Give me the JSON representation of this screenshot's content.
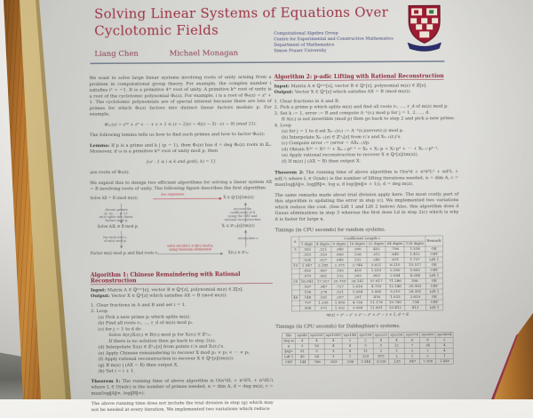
{
  "scene": {
    "accent_color": "#9c3344",
    "paper_color": "#d2d2ce",
    "wood_color": "#b5742e",
    "board_color": "#cdb77e"
  },
  "poster": {
    "title_line1": "Solving Linear Systems of Equations Over",
    "title_line2": "Cyclotomic Fields",
    "authors": [
      "Liang Chen",
      "Michael Monagan"
    ],
    "affiliation": [
      "Computational Algebra Group",
      "Centre for Experimental and Constructive Mathematics",
      "Department of Mathematics",
      "Simon Fraser University"
    ],
    "left": {
      "intro": "We want to solve large linear systems involving roots of unity arising from a problem in computational group theory. For example, the complex number i satisfies i² = −1. It is a primitive 4ᵗʰ root of unity. A primitive kᵗʰ root of unity is a root of the cyclotomic polynomial Φₖ(z). For example, i is a root of Φ₄(z) = z² + 1. The cyclotomic polynomials are of special interest because there are lots of primes for which Φₖ(z) factors into distinct linear factors modulo p. For example,",
      "equation1": "Φ₁₁(z) = z¹⁰ + z⁹ + ⋯ + z + 1 ≡ (z − 2)(z − 4)(z − 5)⋯(z − 9) (mod 11).",
      "lemma_intro": "The following lemma tells us how to find such primes and how to factor Φₖ(z):",
      "lemma_label": "Lemma:",
      "lemma_text": "If p is a prime and k | (p − 1), then Φₖ(z) has d = deg Φₖ(z) roots in ℤₚ. Moreover, if ω is a primitive kᵗʰ root of unity mod p, then",
      "equation2": "{ωⁱ : 1 ≤ i ≤ k and gcd(i, k) = 1}",
      "lemma_end": "are roots of Φₖ(z).",
      "exploit": "We exploit this to design two efficient algorithms for solving a linear system AX = B involving roots of unity. The following figure describes the first algorithm:",
      "figure": {
        "top_left": "Solve AX = B (mod m(z))",
        "top_arrow_label": "too expensive",
        "top_right": "X ∈ ℚⁿ[z]/(m(z))",
        "left_note": "choose primes\np₁, p₂, …, pᵢ s.t.\nm(z) splits into linear\nfactors mod pᵢ",
        "right_note": "recover the\ncoefficients of X\nusing the CRT and\nrational reconstruction",
        "mid_left": "Solve AᵢXᵢ ≡ B mod pᵢ",
        "mid_right": "Xᵢ ∈ ℤⁿₚᵢ[z]/(m(z))",
        "left_note2": "for each root rⱼ\nof m(z) mod pᵢ",
        "right_note2": "interpolate z",
        "bottom_left": "Factor m(z) mod pᵢ and find roots rⱼ",
        "bottom_arrow_label": "solve A(rⱼ)X(rⱼ) ≡ B(rⱼ) mod pᵢ\nusing Gaussian elimination",
        "bottom_right": "X(rⱼ) ∈ ℤⁿₚᵢ"
      },
      "algorithm1": {
        "title": "Algorithm 1: Chinese Remaindering with Rational Reconstruction",
        "input_label": "Input:",
        "input_text": "Matrix A ∈ ℚⁿˣⁿ[z], vector B ∈ ℚⁿ[z], polynomial m(z) ∈ ℤ[z].",
        "output_label": "Output:",
        "output_text": "Vector X ∈ ℚⁿ[z] which satisfies AX = B (mod m(z)).",
        "steps": [
          {
            "i": 0,
            "t": "1. Clear fractions in A and B and set i = 1."
          },
          {
            "i": 0,
            "t": "2. Loop"
          },
          {
            "i": 1,
            "t": "(a) Pick a new prime pᵢ which splits m(z)."
          },
          {
            "i": 1,
            "t": "(b) Find all roots r₁, …, r_d of m(z) mod pᵢ."
          },
          {
            "i": 1,
            "t": "(c) for j = 1 to d do"
          },
          {
            "i": 2,
            "t": "Solve A(rⱼ)Xᵢ(rⱼ) ≡ B(rⱼ) mod pᵢ for Xᵢ(rⱼ) ∈ ℤⁿₚᵢ."
          },
          {
            "i": 2,
            "t": "If there is no solution then go back to step 2(a)."
          },
          {
            "i": 1,
            "t": "(d) Interpolate Xᵢ(z) ∈ ℤⁿₚᵢ[z] from points rⱼ's and Xᵢ(rⱼ)'s."
          },
          {
            "i": 1,
            "t": "(e) Apply Chinese remaindering to recover X mod p₁ × p₂ × ⋯ × pᵢ."
          },
          {
            "i": 1,
            "t": "(f) Apply rational reconstruction to recover X ∈ ℚⁿ[z]/(m(z))."
          },
          {
            "i": 1,
            "t": "(g) If m(z) | (AX − B) then output X."
          },
          {
            "i": 1,
            "t": "(h) Set i = i + 1."
          }
        ]
      },
      "theorem1_label": "Theorem 1:",
      "theorem1_text": "The running time of above algorithm is O(n³dL + n²d²L + n²dL²) where L ∈ O(ndc) is the number of primes needed, n = dim A, d = deg m(z), c = max(log‖A‖∞, log‖B‖∞).",
      "outro": "The above running time does not include the trial division in step (g) which may not be needed at every iteration. We implemented two variations which reduce"
    },
    "right": {
      "algorithm2": {
        "title": "Algorithm 2: p-adic Lifting with Rational Reconstruction",
        "input_label": "Input:",
        "input_text": "Matrix A ∈ ℚⁿˣⁿ[z], vector B ∈ ℚⁿ[z], polynomial m(z) ∈ ℤ[z].",
        "output_label": "Output:",
        "output_text": "Vector X ∈ ℚⁿ[z] which satisfies AX = B (mod m(z)).",
        "steps": [
          {
            "i": 0,
            "t": "1. Clear fractions in A and B."
          },
          {
            "i": 0,
            "t": "2. Pick a prime p which splits m(z) and find all roots r₁, …, r_d of m(z) mod p."
          },
          {
            "i": 0,
            "t": "3. Set k := 1, error := B and compute A⁻¹(rⱼ) mod p for j = 1, 2, …, d."
          },
          {
            "i": 1,
            "t": "If A(rⱼ) is not invertible (mod p) then go back to step 2 and pick a new prime."
          },
          {
            "i": 0,
            "t": "4. Loop"
          },
          {
            "i": 1,
            "t": "(a) for j = 1 to d set Xₖ₋₁(rⱼ) := A⁻¹(rⱼ)(error(rⱼ)) mod p."
          },
          {
            "i": 1,
            "t": "(b) Interpolate Xₖ₋₁(z) ∈ ℤⁿₚ[z] from rⱼ's and Xₖ₋₁(rⱼ)'s."
          },
          {
            "i": 1,
            "t": "(c) Compute error := (error − AXₖ₋₁)/p."
          },
          {
            "i": 1,
            "t": "(d) Obtain X⁽ᵏ⁾ = X⁽ᵏ⁻¹⁾ + Xₖ₋₁·pᵏ⁻¹ = X₀ + X₁·p + X₂·p² + ⋯ + Xₖ₋₁·pᵏ⁻¹."
          },
          {
            "i": 1,
            "t": "(e) Apply rational reconstruction to recover X ∈ ℚⁿ[z]/(m(z))."
          },
          {
            "i": 1,
            "t": "(f) If m(z) | (AX − B) then output X."
          }
        ]
      },
      "theorem2_label": "Theorem 2:",
      "theorem2_text": "The running time of above algorithm is O(n³d + n²d²L² + nd²L + ndL²) where L ∈ O(ndc) is the number of lifting iterations needed, n = dim A, c = max(log‖A‖∞, log‖B‖∞, log a, d log(‖m‖∞ + 1)), d = deg m(z).",
      "remarks": "The same remarks made about trial division apply here. The most costly part of this algorithm is updating the error in step (c). We implemented two variations which reduce the cost. (See Lift 1 and Lift 2 below) Also, this algorithm does d Gauss eliminations in step 3 whereas the first does Ld in step 2(c) which is why it is faster for large n.",
      "timings1_caption": "Timings (in CPU seconds) for random systems.",
      "table1": {
        "span_label": "Coefficient Length c",
        "columns": [
          "n",
          "1 digit",
          "4 digits",
          "8 digits",
          "16 digits",
          "32 digits",
          "64 digits",
          "128 digits",
          "Remark"
        ],
        "rows": [
          [
            "5",
            ".303",
            ".321",
            ".340",
            ".390",
            ".452",
            ".706",
            "1.558",
            "GE"
          ],
          [
            "",
            ".319",
            ".329",
            ".069",
            ".136",
            ".312",
            ".645",
            "1.412",
            "CRT"
          ],
          [
            "",
            ".024",
            ".027",
            ".049",
            ".132",
            ".245",
            ".631",
            "1.797",
            "Lift 1"
          ],
          [
            "10",
            "1.947",
            "2.185",
            "2.375",
            "2.744",
            "3.621",
            "6.210",
            "15.517",
            "GE"
          ],
          [
            "",
            ".050",
            ".067",
            ".183",
            ".418",
            "1.019",
            "2.350",
            "5.883",
            "CRT"
          ],
          [
            "",
            ".070",
            ".061",
            ".152",
            ".309",
            ".803",
            "2.084",
            "4.384",
            "Lift 1"
          ],
          [
            "20",
            "16.041",
            "17.927",
            "20.759",
            "26.141",
            "37.617",
            "71.286",
            "186.",
            "GE"
          ],
          [
            "",
            ".167",
            ".347",
            ".727",
            "1.616",
            "4.759",
            "12.146",
            "30.983",
            "CRT"
          ],
          [
            "",
            ".156",
            ".276",
            ".521",
            "1.094",
            "3.065",
            "9.219",
            "26.381",
            "Lift 1"
          ],
          [
            "40",
            ".148",
            ".161",
            ".207",
            ".201",
            ".476",
            "1.033",
            "2.629",
            "GE"
          ],
          [
            "",
            ".797",
            "1.295",
            "1.899",
            "4.736",
            "11.178",
            "15.780",
            ".734",
            "CRT"
          ],
          [
            "",
            ".506",
            ".971",
            "1.932",
            "3.998",
            "11.891",
            "33.412",
            "413",
            "Lift 1"
          ]
        ],
        "caption": "m(z) = z⁸ − z⁷ + z⁵ − z⁴ + z³ − z + 1, d = 8"
      },
      "timings2_caption": "Timings (in CPU seconds) for Dabbaghian's systems.",
      "table2": {
        "columns": [
          "file",
          "sys49",
          "sys100",
          "sys1089",
          "sys144",
          "sys196",
          "sys225",
          "sys256",
          "sys576",
          "sys900",
          "sys9604"
        ],
        "rows": [
          [
            "deg m",
            "4",
            "4",
            "4",
            "2",
            "2",
            "4",
            "4",
            "6",
            "8",
            "2"
          ],
          [
            "n",
            "5",
            "16",
            "4",
            "4",
            "3",
            "5",
            "12",
            "7",
            "34",
            "4"
          ],
          [
            "‖A‖∞",
            "91",
            "5",
            "3",
            "4",
            "11",
            "2",
            "1",
            "2",
            "2",
            "4"
          ],
          [
            "Lift 1",
            "45",
            "34",
            "1",
            "1",
            "229",
            "875",
            "2",
            "1",
            "2",
            "1"
          ],
          [
            "CRT",
            ".144",
            ".766",
            ".829",
            ".036",
            "3.344",
            "3.026",
            ".135",
            ".847",
            "7.358",
            "1.458"
          ]
        ]
      }
    }
  }
}
